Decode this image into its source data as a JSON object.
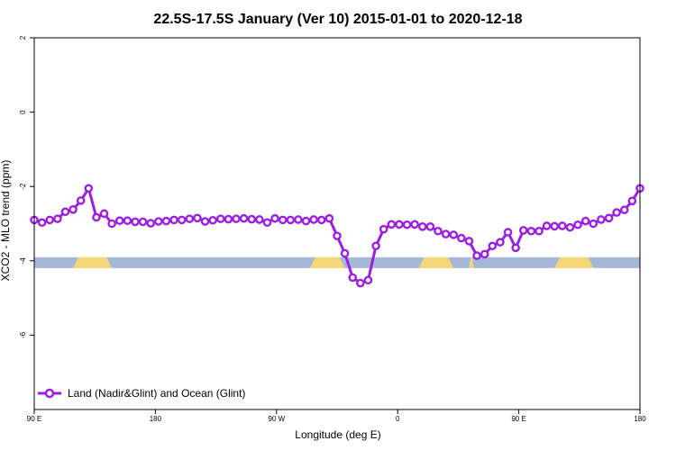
{
  "chart_data": {
    "type": "line",
    "title": "22.5S-17.5S January (Ver 10)   2015-01-01 to 2020-12-18",
    "xlabel": "Longitude (deg E)",
    "ylabel": "XCO2 - MLO trend (ppm)",
    "xlim": [
      0,
      78
    ],
    "ylim": [
      -8,
      2
    ],
    "x_ticks": [
      {
        "value": 0,
        "label": "90 E"
      },
      {
        "value": 15.6,
        "label": "180"
      },
      {
        "value": 31.2,
        "label": "90 W"
      },
      {
        "value": 46.8,
        "label": "0"
      },
      {
        "value": 62.4,
        "label": "90 E"
      },
      {
        "value": 78,
        "label": "180"
      }
    ],
    "y_ticks": [
      {
        "value": 2,
        "label": "2"
      },
      {
        "value": 0,
        "label": "0"
      },
      {
        "value": -2,
        "label": "-2"
      },
      {
        "value": -4,
        "label": "-4"
      },
      {
        "value": -6,
        "label": "-6"
      }
    ],
    "grid": false,
    "legend_position": "bottom-left",
    "series": [
      {
        "name": "Land (Nadir&Glint) and Ocean (Glint)",
        "color": "#9b1fe0",
        "x": [
          0,
          1,
          2,
          3,
          4,
          5,
          6,
          7,
          8,
          9,
          10,
          11,
          12,
          13,
          14,
          15,
          16,
          17,
          18,
          19,
          20,
          21,
          22,
          23,
          24,
          25,
          26,
          27,
          28,
          29,
          30,
          31,
          32,
          33,
          34,
          35,
          36,
          37,
          38,
          39,
          40,
          41,
          42,
          43,
          44,
          45,
          46,
          47,
          48,
          49,
          50,
          51,
          52,
          53,
          54,
          55,
          56,
          57,
          58,
          59,
          60,
          61,
          62,
          63,
          64,
          65,
          66,
          67,
          68,
          69,
          70,
          71,
          72,
          73,
          74,
          75,
          76,
          77,
          78
        ],
        "y": [
          -2.9,
          -2.97,
          -2.9,
          -2.87,
          -2.68,
          -2.62,
          -2.38,
          -2.05,
          -2.83,
          -2.73,
          -3.0,
          -2.92,
          -2.92,
          -2.95,
          -2.95,
          -2.99,
          -2.94,
          -2.93,
          -2.9,
          -2.9,
          -2.87,
          -2.85,
          -2.94,
          -2.91,
          -2.87,
          -2.88,
          -2.87,
          -2.86,
          -2.88,
          -2.89,
          -2.97,
          -2.86,
          -2.9,
          -2.9,
          -2.89,
          -2.93,
          -2.89,
          -2.9,
          -2.86,
          -3.33,
          -3.8,
          -4.45,
          -4.6,
          -4.52,
          -3.6,
          -3.15,
          -3.02,
          -3.02,
          -3.03,
          -3.02,
          -3.08,
          -3.08,
          -3.2,
          -3.28,
          -3.3,
          -3.39,
          -3.47,
          -3.86,
          -3.82,
          -3.6,
          -3.5,
          -3.23,
          -3.65,
          -3.18,
          -3.2,
          -3.2,
          -3.06,
          -3.07,
          -3.06,
          -3.1,
          -3.03,
          -2.93,
          -3.0,
          -2.89,
          -2.85,
          -2.7,
          -2.63,
          -2.39,
          -2.05
        ]
      }
    ],
    "surface_bar": {
      "level": -4.05,
      "ocean_color": "#a4b8d8",
      "land_color": "#f5d77a",
      "land_ranges": [
        [
          5,
          10
        ],
        [
          35.5,
          40
        ],
        [
          49.5,
          54
        ],
        [
          56,
          56.6
        ],
        [
          67,
          72
        ]
      ]
    }
  }
}
